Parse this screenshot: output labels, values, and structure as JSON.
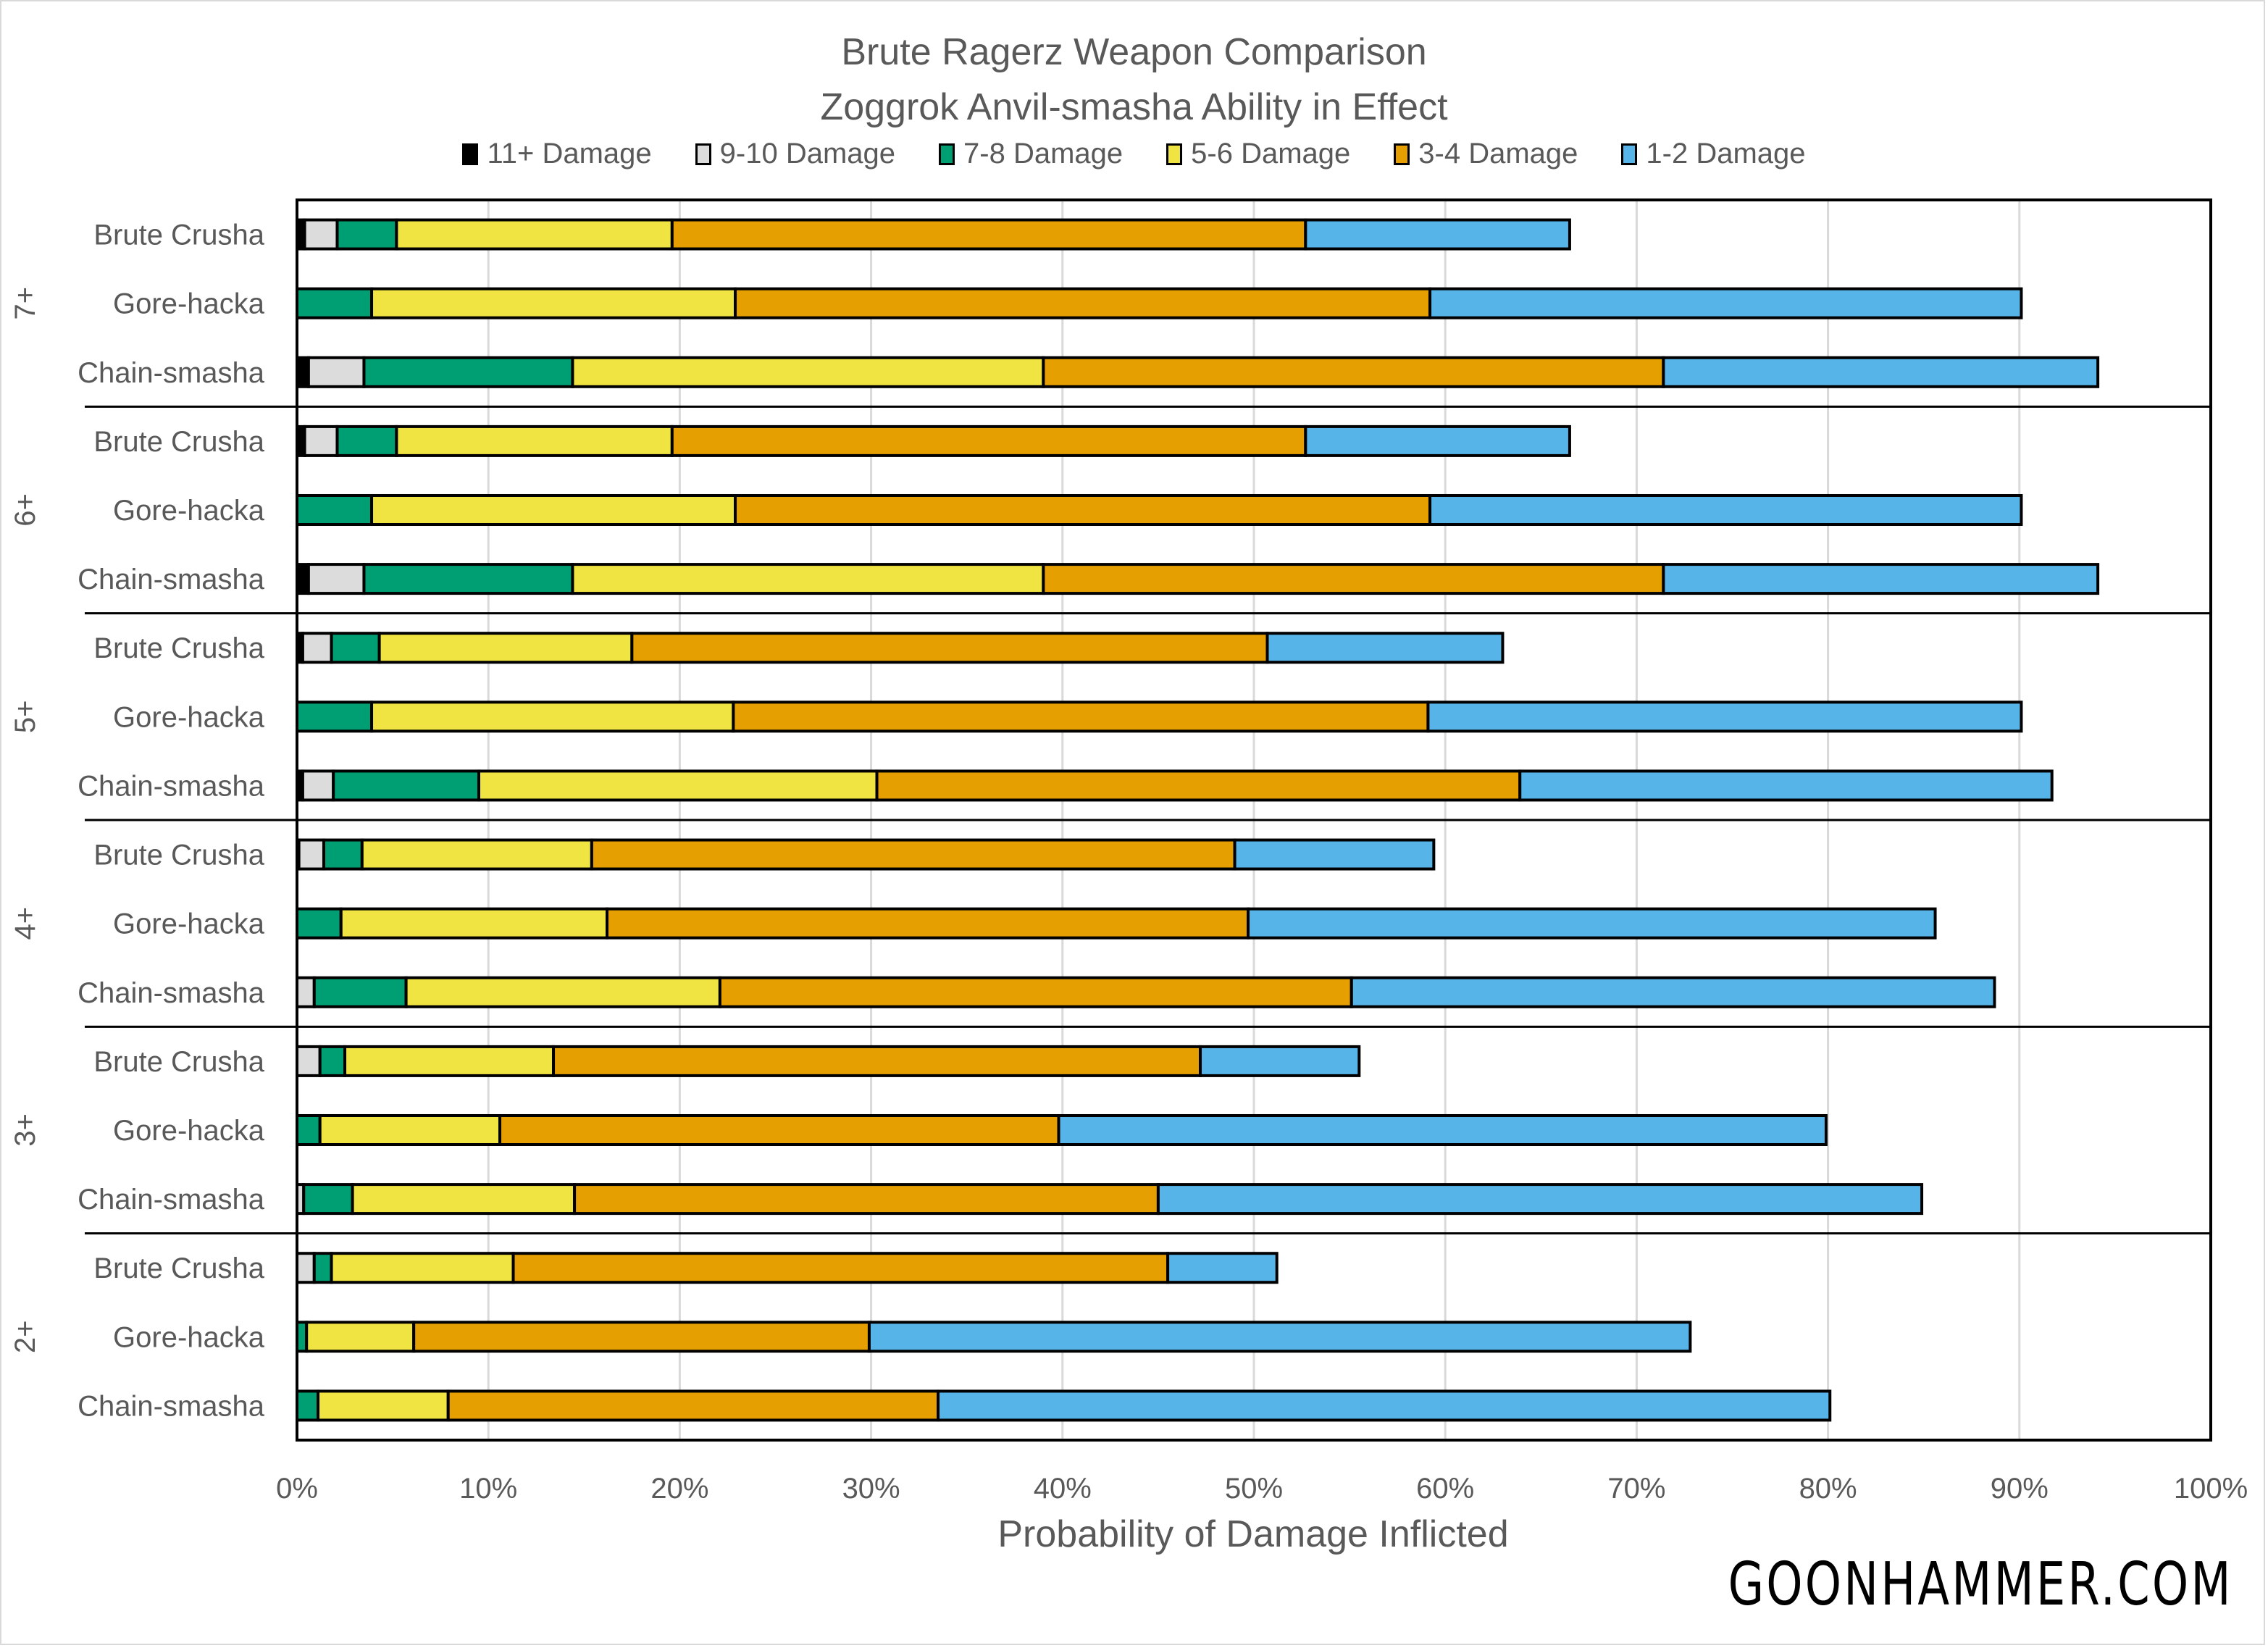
{
  "chart_data": {
    "type": "bar",
    "orientation": "horizontal",
    "stacked": true,
    "title": "Brute Ragerz Weapon Comparison",
    "subtitle": "Zoggrok Anvil-smasha Ability in Effect",
    "xlabel": "Probability of Damage Inflicted",
    "ylabel": "",
    "xlim": [
      0,
      100
    ],
    "x_tick_labels": [
      "0%",
      "10%",
      "20%",
      "30%",
      "40%",
      "50%",
      "60%",
      "70%",
      "80%",
      "90%",
      "100%"
    ],
    "grid": true,
    "legend_position": "top",
    "series_names": [
      "11+ Damage",
      "9-10 Damage",
      "7-8 Damage",
      "5-6 Damage",
      "3-4 Damage",
      "1-2 Damage"
    ],
    "series_colors": [
      "#000000",
      "#dcdcdc",
      "#009e73",
      "#f0e442",
      "#e69f00",
      "#56b4e9"
    ],
    "groups": [
      {
        "label": "7+",
        "bars": [
          {
            "label": "Brute Crusha",
            "values": [
              0.4,
              1.7,
              3.1,
              14.4,
              33.1,
              13.8
            ]
          },
          {
            "label": "Gore-hacka",
            "values": [
              0,
              0,
              3.9,
              19.0,
              36.3,
              30.9
            ]
          },
          {
            "label": "Chain-smasha",
            "values": [
              0.6,
              2.9,
              10.9,
              24.6,
              32.4,
              22.7
            ]
          }
        ]
      },
      {
        "label": "6+",
        "bars": [
          {
            "label": "Brute Crusha",
            "values": [
              0.4,
              1.7,
              3.1,
              14.4,
              33.1,
              13.8
            ]
          },
          {
            "label": "Gore-hacka",
            "values": [
              0,
              0,
              3.9,
              19.0,
              36.3,
              30.9
            ]
          },
          {
            "label": "Chain-smasha",
            "values": [
              0.6,
              2.9,
              10.9,
              24.6,
              32.4,
              22.7
            ]
          }
        ]
      },
      {
        "label": "5+",
        "bars": [
          {
            "label": "Brute Crusha",
            "values": [
              0.3,
              1.5,
              2.5,
              13.2,
              33.2,
              12.3
            ]
          },
          {
            "label": "Gore-hacka",
            "values": [
              0,
              0,
              3.9,
              18.9,
              36.3,
              31.0
            ]
          },
          {
            "label": "Chain-smasha",
            "values": [
              0.3,
              1.6,
              7.6,
              20.8,
              33.6,
              27.8
            ]
          }
        ]
      },
      {
        "label": "4+",
        "bars": [
          {
            "label": "Brute Crusha",
            "values": [
              0.1,
              1.3,
              2.0,
              12.0,
              33.6,
              10.4
            ]
          },
          {
            "label": "Gore-hacka",
            "values": [
              0,
              0,
              2.3,
              13.9,
              33.5,
              35.9
            ]
          },
          {
            "label": "Chain-smasha",
            "values": [
              0,
              0.9,
              4.8,
              16.4,
              33.0,
              33.6
            ]
          }
        ]
      },
      {
        "label": "3+",
        "bars": [
          {
            "label": "Brute Crusha",
            "values": [
              0,
              1.2,
              1.3,
              10.9,
              33.8,
              8.3
            ]
          },
          {
            "label": "Gore-hacka",
            "values": [
              0,
              0,
              1.2,
              9.4,
              29.2,
              40.1
            ]
          },
          {
            "label": "Chain-smasha",
            "values": [
              0,
              0.35,
              2.55,
              11.6,
              30.5,
              39.9
            ]
          }
        ]
      },
      {
        "label": "2+",
        "bars": [
          {
            "label": "Brute Crusha",
            "values": [
              0,
              0.9,
              0.9,
              9.5,
              34.2,
              5.7
            ]
          },
          {
            "label": "Gore-hacka",
            "values": [
              0,
              0,
              0.5,
              5.6,
              23.8,
              42.9
            ]
          },
          {
            "label": "Chain-smasha",
            "values": [
              0,
              0,
              1.1,
              6.8,
              25.6,
              46.6
            ]
          }
        ]
      }
    ]
  },
  "watermark": "GOONHAMMER.COM"
}
